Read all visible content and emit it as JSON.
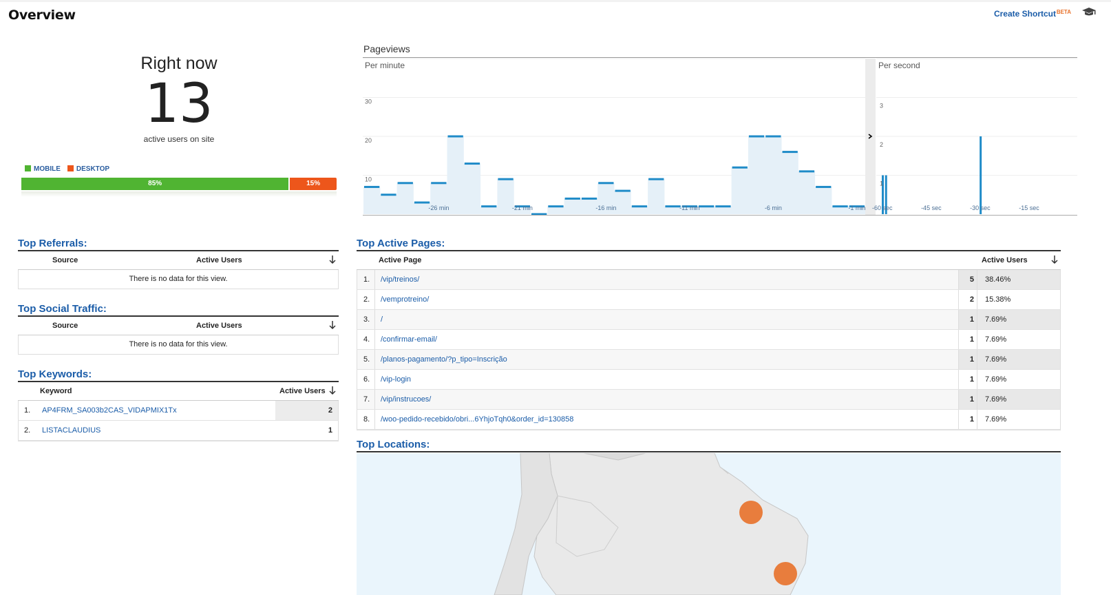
{
  "header": {
    "title": "Overview",
    "shortcut_label": "Create Shortcut",
    "beta_label": "BETA",
    "icon": "graduation-cap-icon"
  },
  "right_now": {
    "title": "Right now",
    "count": "13",
    "subtitle": "active users on site",
    "legend": [
      {
        "label": "MOBILE",
        "color": "#50b432"
      },
      {
        "label": "DESKTOP",
        "color": "#ed561b"
      }
    ],
    "bar": [
      {
        "label": "85%",
        "value": 0.85,
        "color": "#50b432"
      },
      {
        "label": "15%",
        "value": 0.15,
        "color": "#ed561b"
      }
    ]
  },
  "pageviews": {
    "title": "Pageviews",
    "per_minute_label": "Per minute",
    "per_second_label": "Per second",
    "expand_icon": "chevron-right-icon"
  },
  "chart_data": [
    {
      "type": "bar",
      "title": "Per minute",
      "ylim": [
        0,
        40
      ],
      "yticks": [
        "30",
        "20",
        "10"
      ],
      "xticks": [
        "-26 min",
        "-21 min",
        "-16 min",
        "-11 min",
        "-6 min",
        "-1 min"
      ],
      "values": [
        7,
        5,
        8,
        3,
        8,
        20,
        13,
        2,
        9,
        2,
        0,
        2,
        4,
        4,
        8,
        6,
        2,
        9,
        2,
        2,
        2,
        2,
        12,
        20,
        20,
        16,
        11,
        7,
        2,
        2
      ]
    },
    {
      "type": "bar",
      "title": "Per second",
      "ylim": [
        0,
        4
      ],
      "yticks": [
        "3",
        "2",
        "1"
      ],
      "xticks": [
        "-60 sec",
        "-45 sec",
        "-30 sec",
        "-15 sec"
      ],
      "bars": [
        {
          "sec": -59,
          "value": 1
        },
        {
          "sec": -58,
          "value": 1
        },
        {
          "sec": -29,
          "value": 2
        }
      ]
    }
  ],
  "top_referrals": {
    "title": "Top Referrals:",
    "col_source": "Source",
    "col_users": "Active Users",
    "sort_icon": "arrow-down-icon",
    "empty": "There is no data for this view."
  },
  "top_social": {
    "title": "Top Social Traffic:",
    "col_source": "Source",
    "col_users": "Active Users",
    "sort_icon": "arrow-down-icon",
    "empty": "There is no data for this view."
  },
  "top_keywords": {
    "title": "Top Keywords:",
    "col_keyword": "Keyword",
    "col_users": "Active Users",
    "sort_icon": "arrow-down-icon",
    "rows": [
      {
        "num": "1.",
        "keyword": "AP4FRM_SA003b2CAS_VIDAPMIX1Tx",
        "users": "2"
      },
      {
        "num": "2.",
        "keyword": "LISTACLAUDIUS",
        "users": "1"
      }
    ]
  },
  "top_pages": {
    "title": "Top Active Pages:",
    "col_page": "Active Page",
    "col_users": "Active Users",
    "sort_icon": "arrow-down-icon",
    "rows": [
      {
        "num": "1.",
        "page": "/vip/treinos/",
        "users": "5",
        "pct": "38.46%"
      },
      {
        "num": "2.",
        "page": "/vemprotreino/",
        "users": "2",
        "pct": "15.38%"
      },
      {
        "num": "3.",
        "page": "/",
        "users": "1",
        "pct": "7.69%"
      },
      {
        "num": "4.",
        "page": "/confirmar-email/",
        "users": "1",
        "pct": "7.69%"
      },
      {
        "num": "5.",
        "page": "/planos-pagamento/?p_tipo=Inscrição",
        "users": "1",
        "pct": "7.69%"
      },
      {
        "num": "6.",
        "page": "/vip-login",
        "users": "1",
        "pct": "7.69%"
      },
      {
        "num": "7.",
        "page": "/vip/instrucoes/",
        "users": "1",
        "pct": "7.69%"
      },
      {
        "num": "8.",
        "page": "/woo-pedido-recebido/obri...6YhjoTqh0&order_id=130858",
        "users": "1",
        "pct": "7.69%"
      }
    ]
  },
  "top_locations": {
    "title": "Top Locations:",
    "marker_color": "#e8712a"
  }
}
